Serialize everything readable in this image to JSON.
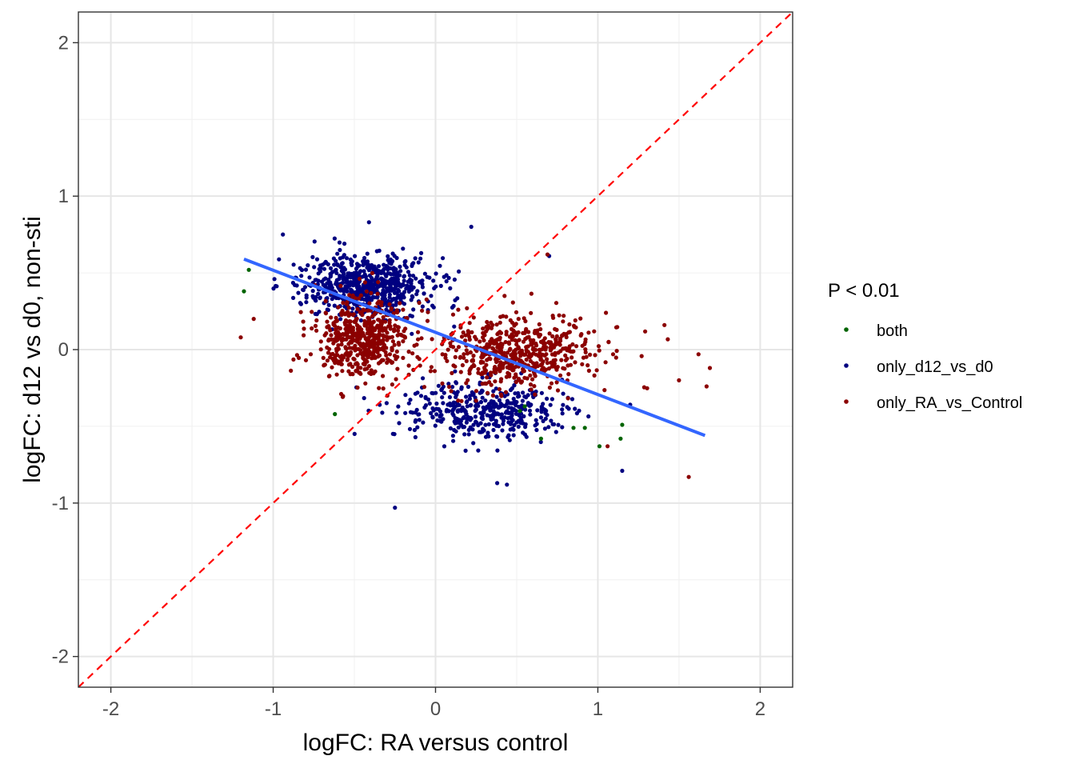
{
  "chart_data": {
    "type": "scatter",
    "title": "",
    "xlabel": "logFC: RA versus control",
    "ylabel": "logFC: d12 vs d0, non-sti",
    "xlim": [
      -2.2,
      2.2
    ],
    "ylim": [
      -2.2,
      2.2
    ],
    "x_ticks": [
      -2,
      -1,
      0,
      1,
      2
    ],
    "y_ticks": [
      -2,
      -1,
      0,
      1,
      2
    ],
    "x_tick_labels": [
      "-2",
      "-1",
      "0",
      "1",
      "2"
    ],
    "y_tick_labels": [
      "-2",
      "-1",
      "0",
      "1",
      "2"
    ],
    "grid": true,
    "legend": {
      "title": "P < 0.01",
      "placement": "right",
      "entries": [
        "both",
        "only_d12_vs_d0",
        "only_RA_vs_Control"
      ]
    },
    "colors": {
      "both": "#006400",
      "only_d12_vs_d0": "#000080",
      "only_RA_vs_Control": "#8B0000",
      "fit_line": "#3366FF",
      "identity_line": "#FF0000"
    },
    "reference_lines": [
      {
        "name": "identity",
        "style": "dashed",
        "x": [
          -2.2,
          2.2
        ],
        "y": [
          -2.2,
          2.2
        ]
      },
      {
        "name": "fit",
        "style": "solid",
        "x": [
          -1.18,
          1.66
        ],
        "y": [
          0.59,
          -0.56
        ]
      }
    ],
    "series": [
      {
        "name": "only_d12_vs_d0",
        "clusters": [
          {
            "cx": -0.42,
            "cy": 0.42,
            "sx": 0.2,
            "sy": 0.1,
            "n": 650
          },
          {
            "cx": 0.3,
            "cy": -0.4,
            "sx": 0.28,
            "sy": 0.09,
            "n": 420
          }
        ],
        "points": [
          {
            "x": -0.41,
            "y": 0.83
          },
          {
            "x": -0.25,
            "y": -1.03
          },
          {
            "x": 0.44,
            "y": -0.88
          },
          {
            "x": 0.22,
            "y": 0.8
          },
          {
            "x": -0.94,
            "y": 0.75
          },
          {
            "x": 0.38,
            "y": -0.87
          },
          {
            "x": 0.7,
            "y": 0.61
          },
          {
            "x": 1.15,
            "y": -0.79
          }
        ]
      },
      {
        "name": "only_RA_vs_Control",
        "clusters": [
          {
            "cx": -0.44,
            "cy": 0.08,
            "sx": 0.14,
            "sy": 0.14,
            "n": 520
          },
          {
            "cx": 0.5,
            "cy": -0.03,
            "sx": 0.26,
            "sy": 0.12,
            "n": 560
          }
        ],
        "points": [
          {
            "x": 1.56,
            "y": -0.83
          },
          {
            "x": 1.67,
            "y": -0.24
          },
          {
            "x": 1.62,
            "y": -0.03
          },
          {
            "x": -1.2,
            "y": 0.08
          },
          {
            "x": -1.12,
            "y": 0.2
          },
          {
            "x": 1.69,
            "y": -0.12
          },
          {
            "x": 0.69,
            "y": 0.62
          },
          {
            "x": 1.05,
            "y": 0.24
          },
          {
            "x": 1.41,
            "y": 0.16
          },
          {
            "x": 1.06,
            "y": -0.63
          },
          {
            "x": -0.65,
            "y": -0.05
          },
          {
            "x": 1.5,
            "y": -0.2
          }
        ]
      },
      {
        "name": "both",
        "points": [
          {
            "x": -1.18,
            "y": 0.38
          },
          {
            "x": -1.15,
            "y": 0.52
          },
          {
            "x": -0.62,
            "y": -0.42
          },
          {
            "x": 0.52,
            "y": -0.4
          },
          {
            "x": 0.65,
            "y": -0.58
          },
          {
            "x": 0.85,
            "y": -0.51
          },
          {
            "x": 1.15,
            "y": -0.49
          },
          {
            "x": 1.14,
            "y": -0.58
          },
          {
            "x": 0.92,
            "y": -0.51
          },
          {
            "x": 1.01,
            "y": -0.63
          },
          {
            "x": 0.55,
            "y": -0.37
          }
        ]
      }
    ]
  }
}
